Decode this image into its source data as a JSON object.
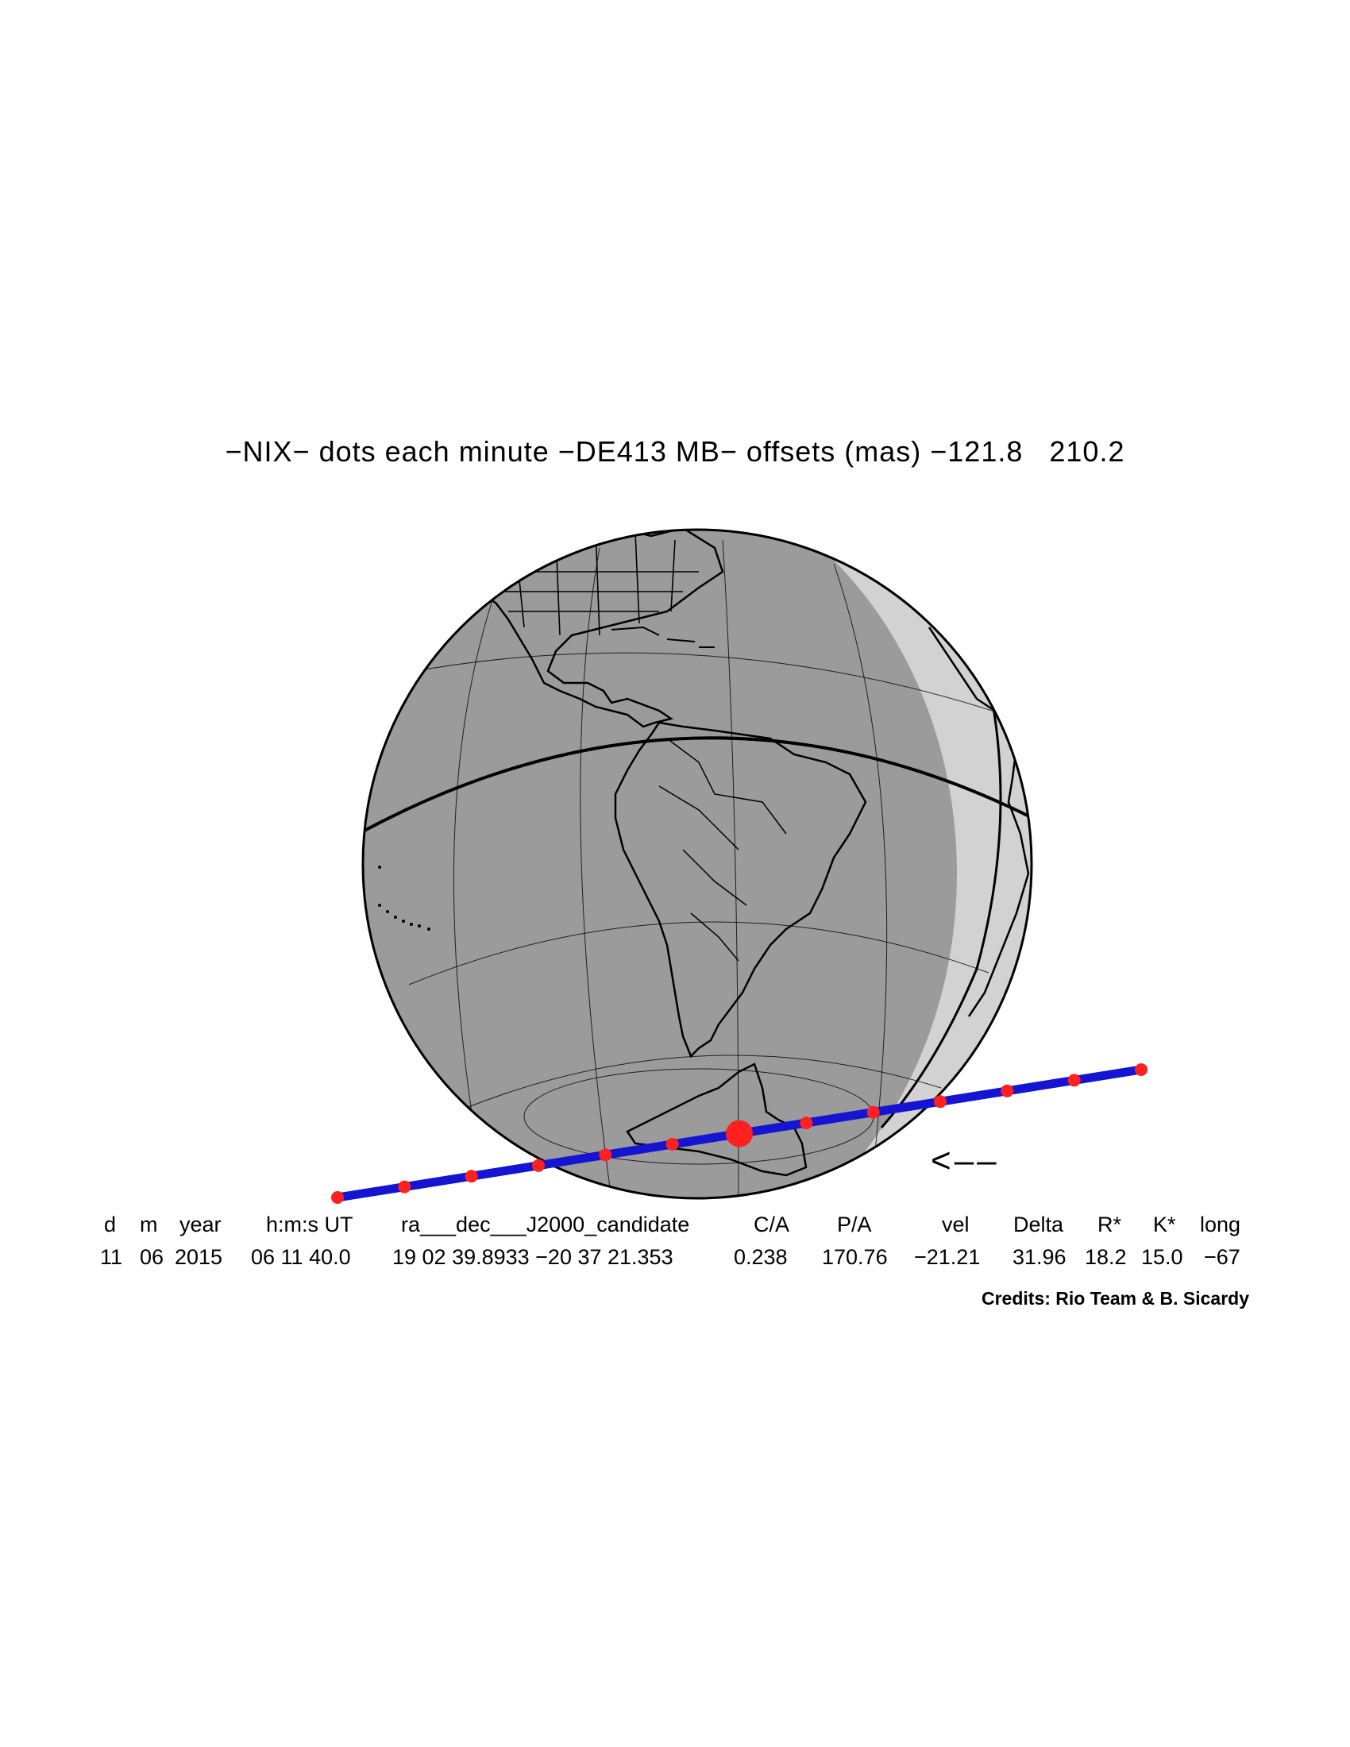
{
  "title": "−NIX− dots each minute −DE413 MB− offsets (mas) −121.8   210.2",
  "direction_arrow": "<––",
  "table": {
    "headers": [
      "d",
      "m",
      "year",
      "h:m:s UT",
      "ra___dec___J2000_candidate",
      "C/A",
      "P/A",
      "vel",
      "Delta",
      "R*",
      "K*",
      "long"
    ],
    "values": [
      "11",
      "06",
      "2015",
      "06 11 40.0",
      "19 02 39.8933 −20 37 21.353",
      "0.238",
      "170.76",
      "−21.21",
      "31.96",
      "18.2",
      "15.0",
      "−67"
    ]
  },
  "credits": "Credits: Rio Team & B. Sicardy",
  "colors": {
    "globe_night": "#9b9b9b",
    "globe_day": "#d2d2d2",
    "outline": "#000000",
    "track": "#1414d2",
    "dots": "#ff2020"
  },
  "track_dots_count": 13
}
